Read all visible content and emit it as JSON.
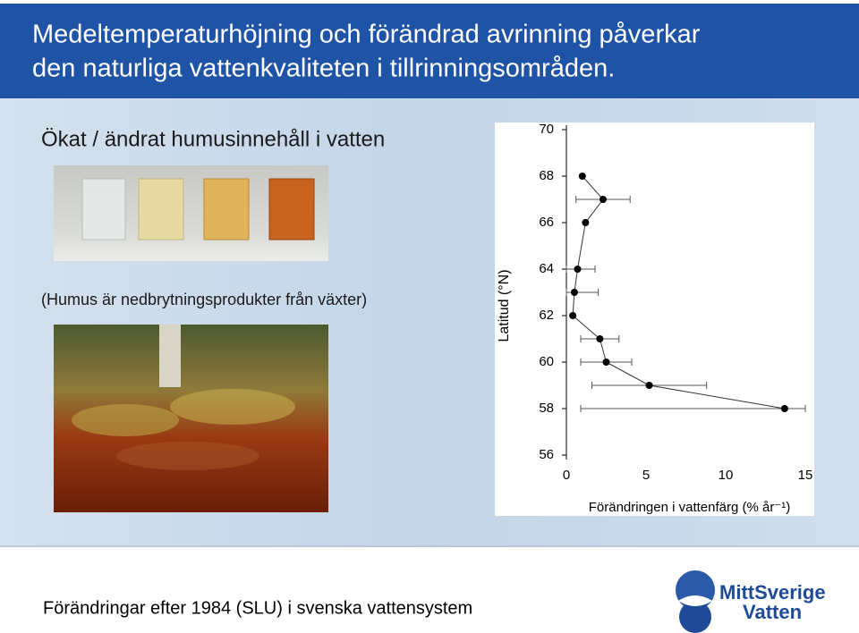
{
  "header": {
    "title_lines": [
      "Medeltemperaturhöjning och förändrad avrinning påverkar",
      "den naturliga vattenkvaliteten i tillrinningsområden."
    ]
  },
  "subtitle": "Ökat / ändrat humusinnehåll i vatten",
  "note": "(Humus är nedbrytningsprodukter från växter)",
  "footer": "Förändringar efter 1984 (SLU) i svenska vattensystem",
  "logo": {
    "lines": [
      "MittSverige",
      "Vatten"
    ]
  },
  "chart_data": {
    "type": "scatter",
    "x_label": "Förändringen i vattenfärg (% år⁻¹)",
    "y_label": "Latitud (°N)",
    "x": [
      1.0,
      2.3,
      1.2,
      0.7,
      0.5,
      0.4,
      2.1,
      2.5,
      5.2,
      13.7
    ],
    "values": [
      68,
      67,
      66,
      64,
      63,
      62,
      61,
      60,
      59,
      58
    ],
    "x_errors": [
      null,
      1.7,
      null,
      1.1,
      1.5,
      null,
      1.2,
      1.6,
      3.6,
      12.8
    ],
    "color": "#000000",
    "xlim": [
      0,
      15
    ],
    "xticks": [
      0,
      5,
      10,
      15
    ],
    "ylim": [
      56,
      70
    ],
    "yticks": [
      56,
      58,
      60,
      62,
      64,
      66,
      68,
      70
    ]
  }
}
